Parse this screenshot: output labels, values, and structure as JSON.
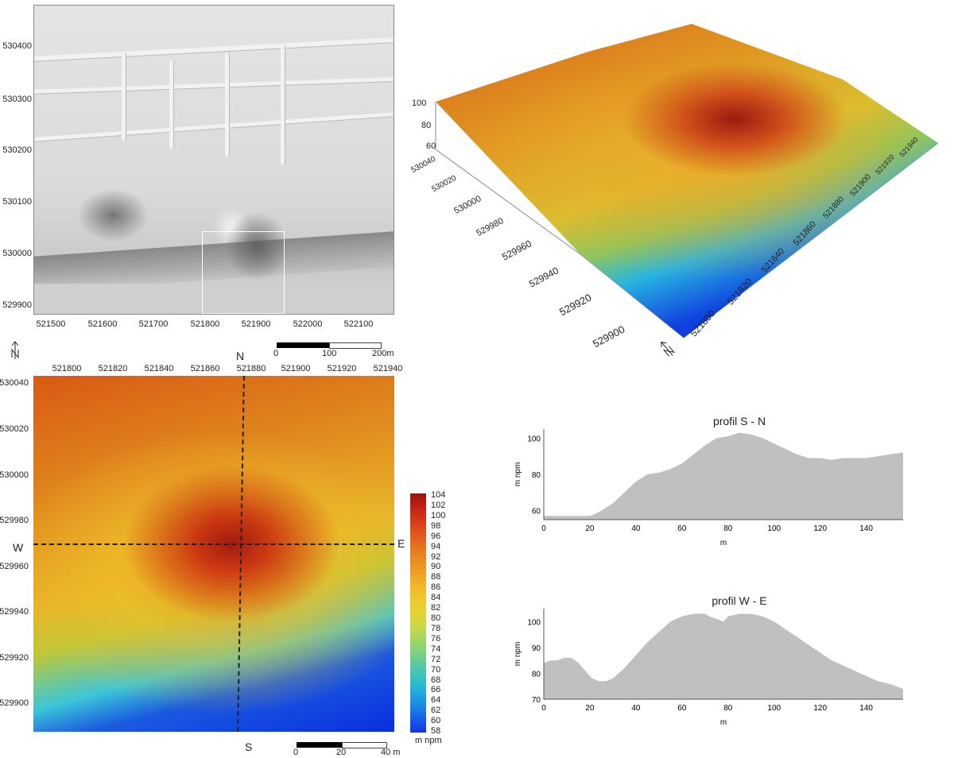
{
  "overview": {
    "y_ticks": [
      "530400",
      "530300",
      "530200",
      "530100",
      "530000",
      "529900"
    ],
    "x_ticks": [
      "521500",
      "521600",
      "521700",
      "521800",
      "521900",
      "522000",
      "522100"
    ],
    "scale": {
      "start": "0",
      "mid": "100",
      "end": "200m"
    }
  },
  "map3d": {
    "z_ticks": [
      "100",
      "80",
      "60"
    ],
    "y_ticks": [
      "530040",
      "530020",
      "530000",
      "529980",
      "529960",
      "529940",
      "529920",
      "529900"
    ],
    "x_ticks": [
      "521800",
      "521820",
      "521840",
      "521860",
      "521880",
      "521900",
      "521920",
      "521940"
    ],
    "north_icon": "north-arrow-icon"
  },
  "detail": {
    "x_ticks": [
      "521800",
      "521820",
      "521840",
      "521860",
      "521880",
      "521900",
      "521920",
      "521940"
    ],
    "y_ticks": [
      "530040",
      "530020",
      "530000",
      "529980",
      "529960",
      "529940",
      "529920",
      "529900"
    ],
    "dir_n": "N",
    "dir_s": "S",
    "dir_w": "W",
    "dir_e": "E",
    "scale": {
      "start": "0",
      "mid": "20",
      "end": "40 m"
    }
  },
  "legend": {
    "values": [
      "104",
      "102",
      "100",
      "98",
      "96",
      "94",
      "92",
      "90",
      "88",
      "86",
      "84",
      "82",
      "80",
      "78",
      "76",
      "74",
      "72",
      "70",
      "68",
      "66",
      "64",
      "62",
      "60",
      "58"
    ],
    "unit": "m npm",
    "colors": [
      "#9c1410",
      "#b81e12",
      "#cc2e14",
      "#d8421a",
      "#e05a1c",
      "#e6701e",
      "#ea8420",
      "#ee9622",
      "#f0a624",
      "#f2b826",
      "#f0c62a",
      "#e8d02e",
      "#d8d638",
      "#c2da4a",
      "#a4d660",
      "#86d27a",
      "#68cc94",
      "#4ac6ae",
      "#30c0c8",
      "#20b0dc",
      "#1c94e4",
      "#1a74e8",
      "#1654ea",
      "#1234ea"
    ]
  },
  "chart_data": [
    {
      "type": "area",
      "title": "profil S - N",
      "xlabel": "m",
      "ylabel": "m npm",
      "xlim": [
        0,
        156
      ],
      "ylim": [
        55,
        105
      ],
      "x_ticks": [
        0,
        20,
        40,
        60,
        80,
        100,
        120,
        140
      ],
      "y_ticks": [
        60,
        80,
        100
      ],
      "x": [
        0,
        5,
        10,
        15,
        20,
        22,
        25,
        30,
        35,
        40,
        45,
        50,
        55,
        60,
        65,
        70,
        75,
        80,
        85,
        90,
        95,
        100,
        105,
        110,
        115,
        120,
        125,
        130,
        135,
        140,
        145,
        150,
        156
      ],
      "y": [
        57,
        57,
        57,
        57,
        57,
        58,
        60,
        64,
        70,
        76,
        80,
        81,
        83,
        86,
        91,
        96,
        100,
        101,
        103,
        102,
        100,
        97,
        94,
        91,
        89,
        89,
        88,
        89,
        89,
        89,
        90,
        91,
        92
      ]
    },
    {
      "type": "area",
      "title": "profil W - E",
      "xlabel": "m",
      "ylabel": "m npm",
      "xlim": [
        0,
        156
      ],
      "ylim": [
        70,
        105
      ],
      "x_ticks": [
        0,
        20,
        40,
        60,
        80,
        100,
        120,
        140
      ],
      "y_ticks": [
        70,
        80,
        90,
        100
      ],
      "x": [
        0,
        3,
        6,
        9,
        12,
        15,
        18,
        21,
        24,
        27,
        30,
        35,
        40,
        45,
        50,
        55,
        60,
        65,
        70,
        72,
        75,
        78,
        80,
        85,
        90,
        95,
        100,
        105,
        110,
        115,
        120,
        125,
        130,
        135,
        140,
        145,
        150,
        156
      ],
      "y": [
        84,
        85,
        85,
        86,
        86,
        84,
        81,
        78,
        77,
        77,
        78,
        82,
        87,
        92,
        96,
        100,
        102,
        103,
        103,
        102,
        101,
        100,
        102,
        103,
        103,
        102,
        100,
        97,
        94,
        91,
        88,
        85,
        83,
        81,
        79,
        77,
        76,
        74
      ]
    }
  ]
}
